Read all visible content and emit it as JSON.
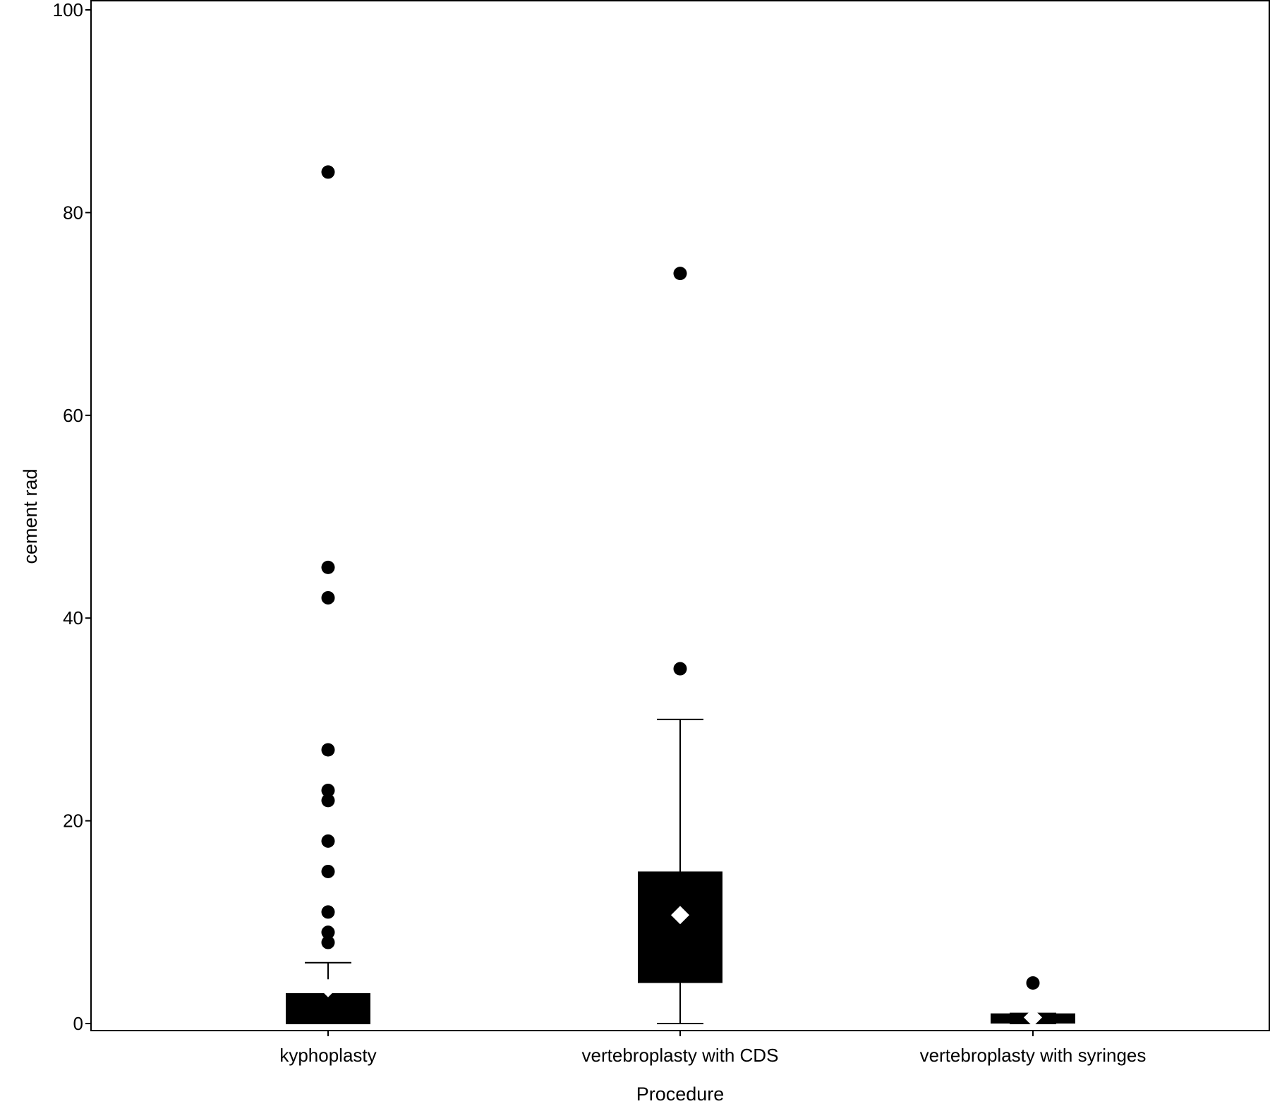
{
  "chart_data": {
    "type": "box",
    "title": "",
    "xlabel": "Procedure",
    "ylabel": "cement rad",
    "ylim": [
      0,
      100
    ],
    "yticks": [
      0,
      20,
      40,
      60,
      80,
      100
    ],
    "grid": false,
    "categories": [
      "kyphoplasty",
      "vertebroplasty with CDS",
      "vertebroplasty with syringes"
    ],
    "boxes": [
      {
        "category": "kyphoplasty",
        "q1": 0,
        "median": 0,
        "q3": 3,
        "whisker_low": 0,
        "whisker_high": 6,
        "mean": 3.5,
        "outliers": [
          8,
          9,
          11,
          15,
          18,
          22,
          23,
          27,
          42,
          45,
          84
        ]
      },
      {
        "category": "vertebroplasty with CDS",
        "q1": 4,
        "median": 10,
        "q3": 15,
        "whisker_low": 0,
        "whisker_high": 30,
        "mean": 10.7,
        "outliers": [
          35,
          74
        ]
      },
      {
        "category": "vertebroplasty with syringes",
        "q1": 0,
        "median": 0.5,
        "q3": 1,
        "whisker_low": 0,
        "whisker_high": 1,
        "mean": 0.6,
        "outliers": [
          4
        ]
      }
    ],
    "colors": {
      "box": "#000000",
      "mean_marker": "#ffffff",
      "outlier": "#000000"
    }
  }
}
